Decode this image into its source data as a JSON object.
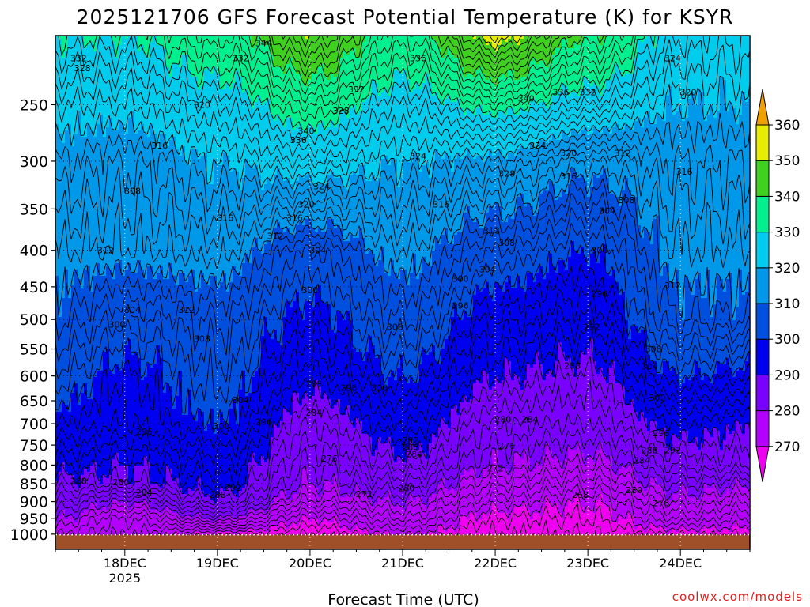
{
  "chart_data": {
    "type": "heatmap",
    "title": "2025121706 GFS Forecast Potential Temperature (K) for KSYR",
    "xlabel": "Forecast Time (UTC)",
    "ylabel": "",
    "credit": "coolwx.com/models",
    "y_axis": {
      "scale": "log",
      "ticks": [
        250,
        300,
        350,
        400,
        450,
        500,
        550,
        600,
        650,
        700,
        750,
        800,
        850,
        900,
        950,
        1000
      ],
      "ylim": [
        200,
        1050
      ]
    },
    "x_axis": {
      "ticks": [
        {
          "label": "18DEC",
          "sublabel": "2025",
          "hour": 18
        },
        {
          "label": "19DEC",
          "sublabel": "",
          "hour": 42
        },
        {
          "label": "20DEC",
          "sublabel": "",
          "hour": 66
        },
        {
          "label": "21DEC",
          "sublabel": "",
          "hour": 90
        },
        {
          "label": "22DEC",
          "sublabel": "",
          "hour": 114
        },
        {
          "label": "23DEC",
          "sublabel": "",
          "hour": 138
        },
        {
          "label": "24DEC",
          "sublabel": "",
          "hour": 162
        }
      ],
      "xlim_hours": [
        0,
        180
      ]
    },
    "colorbar": {
      "levels": [
        260,
        270,
        280,
        290,
        300,
        310,
        320,
        330,
        340,
        350,
        360,
        370
      ],
      "tick_labels": [
        "270",
        "280",
        "290",
        "300",
        "310",
        "320",
        "330",
        "340",
        "350",
        "360"
      ],
      "colors": [
        "#f000f0",
        "#b400ff",
        "#7a00ff",
        "#0000f0",
        "#0050e0",
        "#0098e8",
        "#00ccee",
        "#00f090",
        "#40d020",
        "#e8ec00",
        "#f0a000"
      ],
      "extend": "both"
    },
    "grid": true,
    "sample_columns": [
      {
        "hour": 0,
        "theta_at_pressure": {
          "1000": 276,
          "950": 280,
          "900": 284,
          "850": 288,
          "800": 292,
          "700": 298,
          "600": 303,
          "500": 308,
          "400": 312,
          "300": 318,
          "250": 322,
          "200": 330
        }
      },
      {
        "hour": 18,
        "theta_at_pressure": {
          "1000": 272,
          "950": 274,
          "900": 280,
          "850": 288,
          "800": 290,
          "700": 296,
          "600": 298,
          "500": 304,
          "400": 312,
          "300": 316,
          "250": 322,
          "200": 330
        }
      },
      {
        "hour": 42,
        "theta_at_pressure": {
          "1000": 268,
          "950": 280,
          "900": 288,
          "850": 292,
          "800": 294,
          "700": 300,
          "600": 303,
          "500": 306,
          "400": 313,
          "300": 320,
          "250": 326,
          "200": 336
        }
      },
      {
        "hour": 66,
        "theta_at_pressure": {
          "1000": 266,
          "950": 270,
          "900": 276,
          "850": 280,
          "800": 282,
          "700": 286,
          "600": 292,
          "500": 298,
          "400": 304,
          "300": 324,
          "250": 334,
          "200": 348
        }
      },
      {
        "hour": 90,
        "theta_at_pressure": {
          "1000": 270,
          "950": 276,
          "900": 280,
          "850": 284,
          "800": 288,
          "700": 294,
          "600": 300,
          "500": 306,
          "400": 312,
          "300": 320,
          "250": 326,
          "200": 336
        }
      },
      {
        "hour": 114,
        "theta_at_pressure": {
          "1000": 266,
          "950": 268,
          "900": 272,
          "850": 276,
          "800": 280,
          "700": 284,
          "600": 290,
          "500": 296,
          "400": 304,
          "300": 318,
          "250": 332,
          "200": 352
        }
      },
      {
        "hour": 138,
        "theta_at_pressure": {
          "1000": 266,
          "950": 268,
          "900": 270,
          "850": 274,
          "800": 278,
          "700": 284,
          "600": 288,
          "500": 294,
          "400": 300,
          "300": 312,
          "250": 326,
          "200": 340
        }
      },
      {
        "hour": 162,
        "theta_at_pressure": {
          "1000": 268,
          "950": 274,
          "900": 278,
          "850": 282,
          "800": 286,
          "700": 292,
          "600": 300,
          "500": 308,
          "400": 312,
          "300": 316,
          "250": 320,
          "200": 326
        }
      },
      {
        "hour": 180,
        "theta_at_pressure": {
          "1000": 268,
          "950": 272,
          "900": 276,
          "850": 280,
          "800": 286,
          "700": 290,
          "600": 298,
          "500": 308,
          "400": 312,
          "300": 316,
          "250": 320,
          "200": 324
        }
      }
    ],
    "contour_labels": [
      {
        "text": "344",
        "hour": 54,
        "p": 205
      },
      {
        "text": "332",
        "hour": 6,
        "p": 215
      },
      {
        "text": "328",
        "hour": 7,
        "p": 222
      },
      {
        "text": "332",
        "hour": 48,
        "p": 215
      },
      {
        "text": "336",
        "hour": 94,
        "p": 215
      },
      {
        "text": "328",
        "hour": 156,
        "p": 203
      },
      {
        "text": "324",
        "hour": 160,
        "p": 215
      },
      {
        "text": "320",
        "hour": 164,
        "p": 240
      },
      {
        "text": "320",
        "hour": 38,
        "p": 250
      },
      {
        "text": "332",
        "hour": 78,
        "p": 238
      },
      {
        "text": "328",
        "hour": 74,
        "p": 255
      },
      {
        "text": "340",
        "hour": 122,
        "p": 245
      },
      {
        "text": "336",
        "hour": 131,
        "p": 240
      },
      {
        "text": "332",
        "hour": 138,
        "p": 240
      },
      {
        "text": "340",
        "hour": 65,
        "p": 272
      },
      {
        "text": "336",
        "hour": 63,
        "p": 280
      },
      {
        "text": "316",
        "hour": 27,
        "p": 285
      },
      {
        "text": "324",
        "hour": 94,
        "p": 295
      },
      {
        "text": "324",
        "hour": 125,
        "p": 285
      },
      {
        "text": "320",
        "hour": 133,
        "p": 292
      },
      {
        "text": "312",
        "hour": 147,
        "p": 292
      },
      {
        "text": "328",
        "hour": 117,
        "p": 312
      },
      {
        "text": "316",
        "hour": 133,
        "p": 315
      },
      {
        "text": "316",
        "hour": 163,
        "p": 310
      },
      {
        "text": "324",
        "hour": 69,
        "p": 325
      },
      {
        "text": "308",
        "hour": 20,
        "p": 330
      },
      {
        "text": "320",
        "hour": 65,
        "p": 345
      },
      {
        "text": "316",
        "hour": 100,
        "p": 345
      },
      {
        "text": "308",
        "hour": 148,
        "p": 340
      },
      {
        "text": "304",
        "hour": 143,
        "p": 352
      },
      {
        "text": "316",
        "hour": 44,
        "p": 360
      },
      {
        "text": "316",
        "hour": 62,
        "p": 360
      },
      {
        "text": "312",
        "hour": 57,
        "p": 382
      },
      {
        "text": "312",
        "hour": 113,
        "p": 375
      },
      {
        "text": "308",
        "hour": 117,
        "p": 390
      },
      {
        "text": "304",
        "hour": 68,
        "p": 400
      },
      {
        "text": "312",
        "hour": 13,
        "p": 400
      },
      {
        "text": "300",
        "hour": 141,
        "p": 400
      },
      {
        "text": "304",
        "hour": 112,
        "p": 425
      },
      {
        "text": "300",
        "hour": 105,
        "p": 438
      },
      {
        "text": "300",
        "hour": 66,
        "p": 455
      },
      {
        "text": "312",
        "hour": 160,
        "p": 448
      },
      {
        "text": "296",
        "hour": 141,
        "p": 460
      },
      {
        "text": "296",
        "hour": 105,
        "p": 478
      },
      {
        "text": "312",
        "hour": 34,
        "p": 485
      },
      {
        "text": "304",
        "hour": 20,
        "p": 485
      },
      {
        "text": "300",
        "hour": 16,
        "p": 508
      },
      {
        "text": "308",
        "hour": 88,
        "p": 512
      },
      {
        "text": "292",
        "hour": 139,
        "p": 512
      },
      {
        "text": "308",
        "hour": 38,
        "p": 532
      },
      {
        "text": "308",
        "hour": 155,
        "p": 550
      },
      {
        "text": "288",
        "hour": 134,
        "p": 580
      },
      {
        "text": "304",
        "hour": 154,
        "p": 582
      },
      {
        "text": "288",
        "hour": 67,
        "p": 615
      },
      {
        "text": "296",
        "hour": 76,
        "p": 623
      },
      {
        "text": "300",
        "hour": 84,
        "p": 623
      },
      {
        "text": "300",
        "hour": 156,
        "p": 643
      },
      {
        "text": "304",
        "hour": 48,
        "p": 648
      },
      {
        "text": "284",
        "hour": 67,
        "p": 675
      },
      {
        "text": "300",
        "hour": 43,
        "p": 705
      },
      {
        "text": "296",
        "hour": 54,
        "p": 695
      },
      {
        "text": "280",
        "hour": 116,
        "p": 690
      },
      {
        "text": "284",
        "hour": 123,
        "p": 690
      },
      {
        "text": "296",
        "hour": 23,
        "p": 718
      },
      {
        "text": "296",
        "hour": 157,
        "p": 722
      },
      {
        "text": "292",
        "hour": 92,
        "p": 738
      },
      {
        "text": "276",
        "hour": 117,
        "p": 752
      },
      {
        "text": "288",
        "hour": 92,
        "p": 755
      },
      {
        "text": "288",
        "hour": 154,
        "p": 762
      },
      {
        "text": "292",
        "hour": 160,
        "p": 762
      },
      {
        "text": "284",
        "hour": 93,
        "p": 772
      },
      {
        "text": "276",
        "hour": 71,
        "p": 783
      },
      {
        "text": "284",
        "hour": 152,
        "p": 788
      },
      {
        "text": "272",
        "hour": 114,
        "p": 808
      },
      {
        "text": "292",
        "hour": 46,
        "p": 860
      },
      {
        "text": "288",
        "hour": 6,
        "p": 842
      },
      {
        "text": "280",
        "hour": 17,
        "p": 845
      },
      {
        "text": "288",
        "hour": 42,
        "p": 880
      },
      {
        "text": "280",
        "hour": 91,
        "p": 862
      },
      {
        "text": "280",
        "hour": 150,
        "p": 867
      },
      {
        "text": "284",
        "hour": 23,
        "p": 874
      },
      {
        "text": "272",
        "hour": 80,
        "p": 878
      },
      {
        "text": "268",
        "hour": 136,
        "p": 880
      },
      {
        "text": "276",
        "hour": 157,
        "p": 905
      }
    ]
  }
}
